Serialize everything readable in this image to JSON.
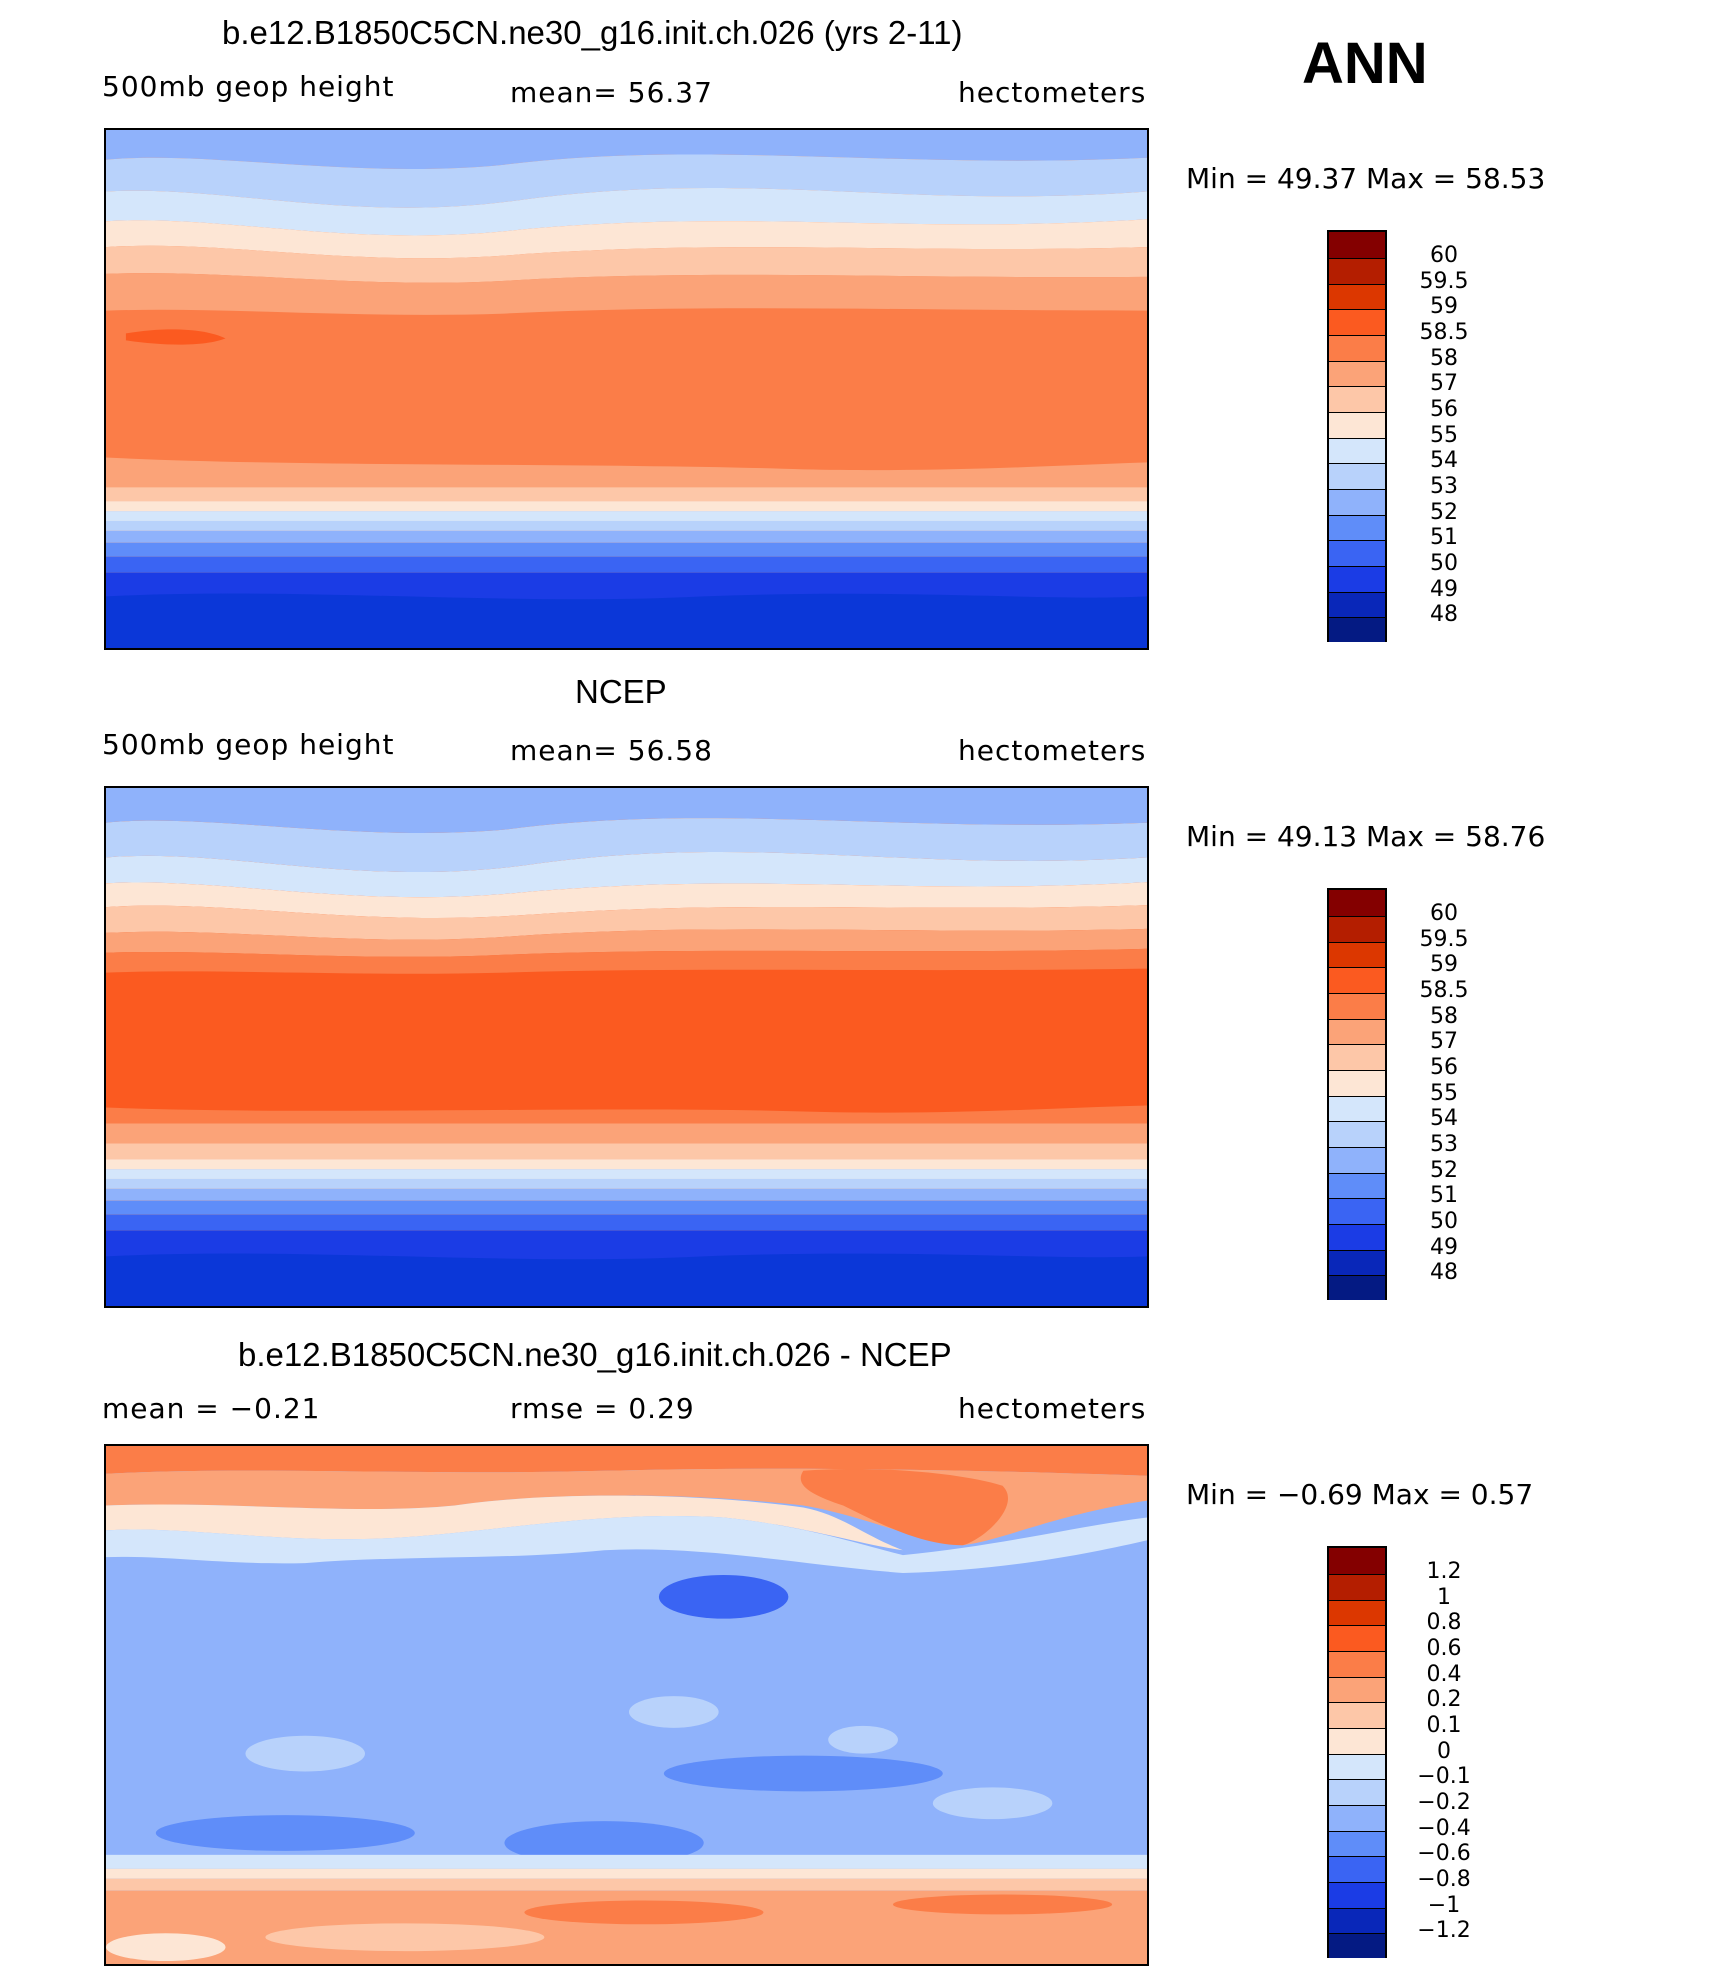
{
  "season": "ANN",
  "panels": [
    {
      "id": "model",
      "title": "b.e12.B1850C5CN.ne30_g16.init.ch.026 (yrs 2-11)",
      "variable": "500mb geop height",
      "stat": "mean=  56.37",
      "units": "hectometers",
      "minmax": "Min =   49.37 Max =   58.53",
      "colorbar_labels": [
        "60",
        "59.5",
        "59",
        "58.5",
        "58",
        "57",
        "56",
        "55",
        "54",
        "53",
        "52",
        "51",
        "50",
        "49",
        "48"
      ],
      "colors": [
        "#840000",
        "#b41e00",
        "#dc3700",
        "#fb5a20",
        "#fb7d48",
        "#fba378",
        "#fdc7a8",
        "#fde6d5",
        "#d4e6fb",
        "#b8d2fb",
        "#8fb2fb",
        "#5f8df9",
        "#3a64f3",
        "#1b3ce5",
        "#0927b9",
        "#041a83"
      ],
      "bands_note": "model"
    },
    {
      "id": "obs",
      "title": "NCEP",
      "variable": "500mb geop height",
      "stat": "mean=  56.58",
      "units": "hectometers",
      "minmax": "Min =   49.13 Max =   58.76",
      "colorbar_labels": [
        "60",
        "59.5",
        "59",
        "58.5",
        "58",
        "57",
        "56",
        "55",
        "54",
        "53",
        "52",
        "51",
        "50",
        "49",
        "48"
      ],
      "colors": [
        "#840000",
        "#b41e00",
        "#dc3700",
        "#fb5a20",
        "#fb7d48",
        "#fba378",
        "#fdc7a8",
        "#fde6d5",
        "#d4e6fb",
        "#b8d2fb",
        "#8fb2fb",
        "#5f8df9",
        "#3a64f3",
        "#1b3ce5",
        "#0927b9",
        "#041a83"
      ],
      "bands_note": "obs"
    },
    {
      "id": "diff",
      "title": "b.e12.B1850C5CN.ne30_g16.init.ch.026 - NCEP",
      "stat_left": "mean =   −0.21",
      "stat_mid": "rmse =    0.29",
      "units": "hectometers",
      "minmax": "Min =  −0.69  Max =    0.57",
      "colorbar_labels": [
        "1.2",
        "1",
        "0.8",
        "0.6",
        "0.4",
        "0.2",
        "0.1",
        "0",
        "−0.1",
        "−0.2",
        "−0.4",
        "−0.6",
        "−0.8",
        "−1",
        "−1.2"
      ],
      "colors": [
        "#840000",
        "#b41e00",
        "#dc3700",
        "#fb5a20",
        "#fb7d48",
        "#fba378",
        "#fdc7a8",
        "#fde6d5",
        "#d4e6fb",
        "#b8d2fb",
        "#8fb2fb",
        "#5f8df9",
        "#3a64f3",
        "#1b3ce5",
        "#0927b9",
        "#041a83"
      ],
      "bands_note": "diff"
    }
  ]
}
